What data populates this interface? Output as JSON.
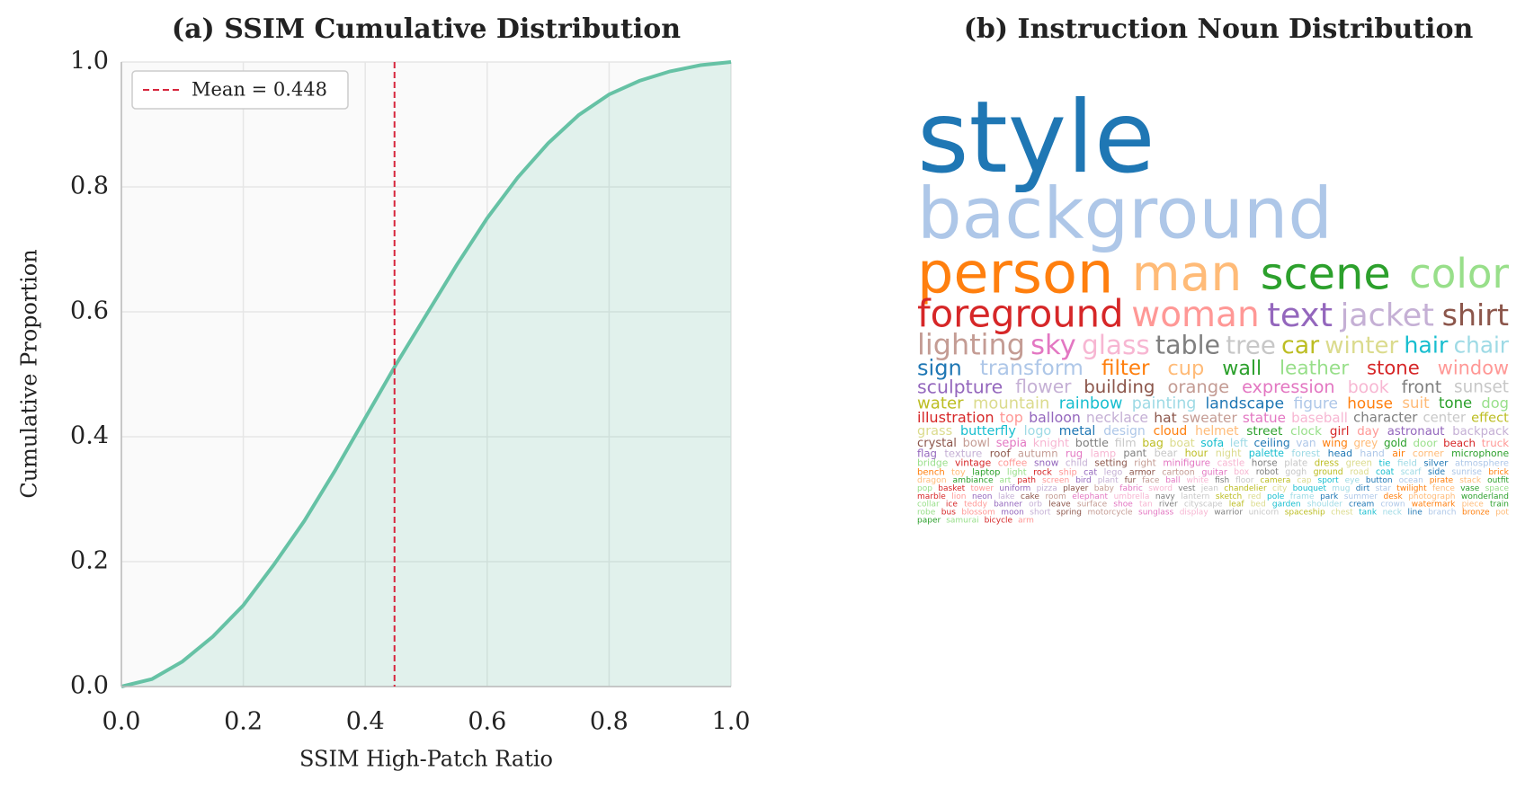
{
  "chart_data": [
    {
      "type": "line",
      "title": "(a) SSIM Cumulative Distribution",
      "xlabel": "SSIM High-Patch Ratio",
      "ylabel": "Cumulative Proportion",
      "x": [
        0,
        0.05,
        0.1,
        0.15,
        0.2,
        0.25,
        0.3,
        0.35,
        0.4,
        0.45,
        0.5,
        0.55,
        0.6,
        0.65,
        0.7,
        0.75,
        0.8,
        0.85,
        0.9,
        0.95,
        1.0
      ],
      "values": [
        0,
        0.012,
        0.04,
        0.08,
        0.13,
        0.195,
        0.265,
        0.345,
        0.43,
        0.515,
        0.595,
        0.675,
        0.75,
        0.815,
        0.87,
        0.915,
        0.948,
        0.97,
        0.985,
        0.995,
        1.0
      ],
      "color": "#66c2a5",
      "fill": true,
      "mean_line": {
        "value": 0.448,
        "label": "Mean = 0.448",
        "color": "#d7263d"
      },
      "xlim": [
        0,
        1
      ],
      "ylim": [
        0,
        1
      ],
      "xticks": [
        {
          "value": 0,
          "label": "0.0"
        },
        0.2,
        0.4,
        0.6,
        0.8,
        {
          "value": 1,
          "label": "1.0"
        }
      ],
      "yticks": [
        {
          "value": 0,
          "label": "0.0"
        },
        0.2,
        0.4,
        0.6,
        0.8,
        {
          "value": 1,
          "label": "1.0"
        }
      ],
      "grid": true,
      "legend": "upper left"
    },
    {
      "type": "wordcloud",
      "title": "(b) Instruction Noun Distribution",
      "palette": [
        "#1f77b4",
        "#aec7e8",
        "#ff7f0e",
        "#ffbb78",
        "#2ca02c",
        "#98df8a",
        "#d62728",
        "#ff9896",
        "#9467bd",
        "#c5b0d5",
        "#8c564b",
        "#c49c94",
        "#e377c2",
        "#f7b6d2",
        "#7f7f7f",
        "#c7c7c7",
        "#bcbd22",
        "#dbdb8d",
        "#17becf",
        "#9edae5"
      ],
      "words": [
        "style",
        "background",
        "person",
        "man",
        "scene",
        "color",
        "foreground",
        "woman",
        "text",
        "jacket",
        "shirt",
        "lighting",
        "sky",
        "glass",
        "table",
        "tree",
        "car",
        "winter",
        "hair",
        "chair",
        "sign",
        "transform",
        "filter",
        "cup",
        "wall",
        "leather",
        "stone",
        "window",
        "sculpture",
        "flower",
        "building",
        "orange",
        "expression",
        "book",
        "front",
        "sunset",
        "water",
        "mountain",
        "rainbow",
        "painting",
        "landscape",
        "figure",
        "house",
        "suit",
        "tone",
        "dog",
        "illustration",
        "top",
        "balloon",
        "necklace",
        "hat",
        "sweater",
        "statue",
        "baseball",
        "character",
        "center",
        "effect",
        "grass",
        "butterfly",
        "logo",
        "metal",
        "design",
        "cloud",
        "helmet",
        "street",
        "clock",
        "girl",
        "day",
        "astronaut",
        "backpack",
        "crystal",
        "bowl",
        "sepia",
        "knight",
        "bottle",
        "film",
        "bag",
        "boat",
        "sofa",
        "left",
        "ceiling",
        "van",
        "wing",
        "grey",
        "gold",
        "door",
        "beach",
        "truck",
        "flag",
        "texture",
        "roof",
        "autumn",
        "rug",
        "lamp",
        "pant",
        "bear",
        "hour",
        "night",
        "palette",
        "forest",
        "head",
        "hand",
        "air",
        "corner",
        "microphone",
        "bridge",
        "vintage",
        "coffee",
        "snow",
        "child",
        "setting",
        "right",
        "minifigure",
        "castle",
        "horse",
        "plate",
        "dress",
        "green",
        "tie",
        "field",
        "silver",
        "atmosphere",
        "bench",
        "toy",
        "laptop",
        "light",
        "rock",
        "ship",
        "cat",
        "lego",
        "armor",
        "cartoon",
        "guitar",
        "box",
        "robot",
        "gogh",
        "ground",
        "road",
        "coat",
        "scarf",
        "side",
        "sunrise",
        "brick",
        "dragon",
        "ambiance",
        "art",
        "path",
        "screen",
        "bird",
        "plant",
        "fur",
        "face",
        "ball",
        "white",
        "fish",
        "floor",
        "camera",
        "cap",
        "sport",
        "eye",
        "button",
        "ocean",
        "pirate",
        "stack",
        "outfit",
        "pop",
        "basket",
        "tower",
        "uniform",
        "pizza",
        "player",
        "baby",
        "fabric",
        "sword",
        "vest",
        "jean",
        "chandelier",
        "city",
        "bouquet",
        "mug",
        "dirt",
        "star",
        "twilight",
        "fence",
        "vase",
        "space",
        "marble",
        "lion",
        "neon",
        "lake",
        "cake",
        "room",
        "elephant",
        "umbrella",
        "navy",
        "lantern",
        "sketch",
        "red",
        "pole",
        "frame",
        "park",
        "summer",
        "desk",
        "photograph",
        "wonderland",
        "collar",
        "ice",
        "teddy",
        "banner",
        "orb",
        "leave",
        "surface",
        "shoe",
        "tan",
        "river",
        "cityscape",
        "leaf",
        "bed",
        "garden",
        "shoulder",
        "cream",
        "crown",
        "watermark",
        "piece",
        "train",
        "robe",
        "bus",
        "blossom",
        "moon",
        "short",
        "spring",
        "motorcycle",
        "sunglass",
        "display",
        "warrior",
        "unicorn",
        "spaceship",
        "chest",
        "tank",
        "neck",
        "line",
        "branch",
        "bronze",
        "pot",
        "paper",
        "samurai",
        "bicycle",
        "arm"
      ]
    }
  ]
}
